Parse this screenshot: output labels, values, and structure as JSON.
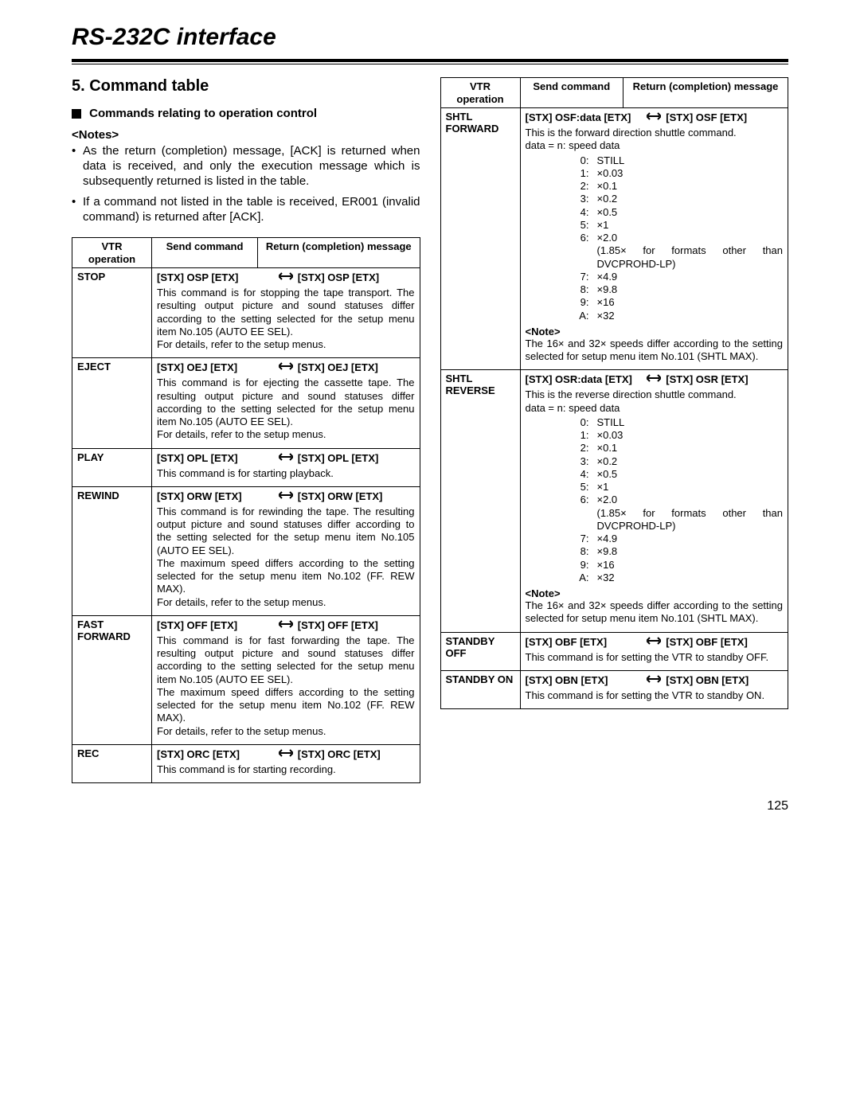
{
  "header": {
    "title": "RS-232C interface"
  },
  "section": {
    "number_title": "5.  Command table",
    "sub_heading": "Commands relating to operation control",
    "notes_label": "<Notes>",
    "bullets": [
      "As the return (completion) message, [ACK] is returned when data is received, and only the execution message which is subsequently returned is listed in the table.",
      "If a command not listed in the table is received, ER001 (invalid command) is returned after [ACK]."
    ]
  },
  "table_headers": {
    "col1": "VTR operation",
    "col2": "Send command",
    "col3": "Return (completion) message"
  },
  "left_rows": [
    {
      "op": "STOP",
      "send": "[STX] OSP [ETX]",
      "ret": "[STX] OSP [ETX]",
      "desc": "This command is for stopping the tape transport. The resulting output picture and sound statuses differ according to the setting selected for the setup menu item No.105 (AUTO EE SEL).\nFor details, refer to the setup menus."
    },
    {
      "op": "EJECT",
      "send": "[STX] OEJ [ETX]",
      "ret": "[STX] OEJ [ETX]",
      "desc": "This command is for ejecting the cassette tape. The resulting output picture and sound statuses differ according to the setting selected for the setup menu item No.105 (AUTO EE SEL).\nFor details, refer to the setup menus."
    },
    {
      "op": "PLAY",
      "send": "[STX] OPL [ETX]",
      "ret": "[STX] OPL [ETX]",
      "desc": "This command is for starting playback."
    },
    {
      "op": "REWIND",
      "send": "[STX] ORW [ETX]",
      "ret": "[STX] ORW [ETX]",
      "desc": "This command is for rewinding the tape.  The resulting output picture and sound statuses differ according to the setting selected for the setup menu item No.105 (AUTO EE SEL).\nThe maximum speed differs according to the setting selected for the setup menu item No.102 (FF. REW MAX).\nFor details, refer to the setup menus."
    },
    {
      "op": "FAST FORWARD",
      "send": "[STX] OFF [ETX]",
      "ret": "[STX] OFF [ETX]",
      "desc": "This command is for fast forwarding the tape. The resulting output picture and sound statuses differ according to the setting selected for the setup menu item No.105 (AUTO EE SEL).\nThe maximum speed differs according to the setting selected for the setup menu item No.102 (FF. REW MAX).\nFor details, refer to the setup menus."
    },
    {
      "op": "REC",
      "send": "[STX] ORC [ETX]",
      "ret": "[STX] ORC [ETX]",
      "desc": "This command is for starting recording."
    }
  ],
  "right_rows": [
    {
      "op": "SHTL FORWARD",
      "send": "[STX] OSF:data [ETX]",
      "ret": "[STX] OSF [ETX]",
      "intro": "This is the forward direction shuttle command.",
      "data_label": "data =  n:   speed data",
      "speed": [
        [
          "0:",
          "STILL"
        ],
        [
          "1:",
          "×0.03"
        ],
        [
          "2:",
          "×0.1"
        ],
        [
          "3:",
          "×0.2"
        ],
        [
          "4:",
          "×0.5"
        ],
        [
          "5:",
          "×1"
        ],
        [
          "6:",
          "×2.0"
        ],
        [
          "",
          "(1.85× for formats other than DVCPROHD-LP)"
        ],
        [
          "7:",
          "×4.9"
        ],
        [
          "8:",
          "×9.8"
        ],
        [
          "9:",
          "×16"
        ],
        [
          "A:",
          "×32"
        ]
      ],
      "note_label": "<Note>",
      "note_text": "The 16× and 32× speeds differ according to the setting selected for setup menu item No.101 (SHTL MAX)."
    },
    {
      "op": "SHTL REVERSE",
      "send": "[STX] OSR:data [ETX]",
      "ret": "[STX] OSR [ETX]",
      "intro": "This is the reverse direction shuttle command.",
      "data_label": "data =  n:   speed data",
      "speed": [
        [
          "0:",
          "STILL"
        ],
        [
          "1:",
          "×0.03"
        ],
        [
          "2:",
          "×0.1"
        ],
        [
          "3:",
          "×0.2"
        ],
        [
          "4:",
          "×0.5"
        ],
        [
          "5:",
          "×1"
        ],
        [
          "6:",
          "×2.0"
        ],
        [
          "",
          "(1.85× for formats other than DVCPROHD-LP)"
        ],
        [
          "7:",
          "×4.9"
        ],
        [
          "8:",
          "×9.8"
        ],
        [
          "9:",
          "×16"
        ],
        [
          "A:",
          "×32"
        ]
      ],
      "note_label": "<Note>",
      "note_text": "The 16× and 32× speeds differ according to the setting selected for setup menu item No.101 (SHTL MAX)."
    },
    {
      "op": "STANDBY OFF",
      "send": "[STX] OBF [ETX]",
      "ret": "[STX] OBF [ETX]",
      "desc": "This command is for setting the VTR to standby OFF."
    },
    {
      "op": "STANDBY ON",
      "send": "[STX] OBN [ETX]",
      "ret": "[STX] OBN [ETX]",
      "desc": "This command is for setting the VTR to standby ON."
    }
  ],
  "page_number": "125"
}
